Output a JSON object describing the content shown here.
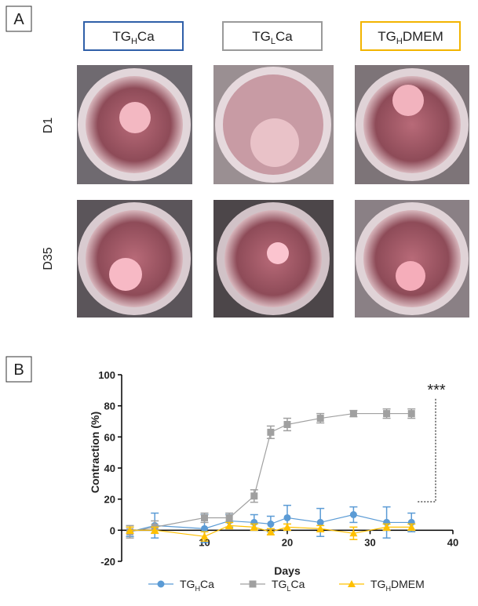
{
  "panel_a": {
    "label": "A",
    "columns": [
      {
        "name": [
          "TG",
          "H",
          "Ca"
        ],
        "color": "#2f5fa8"
      },
      {
        "name": [
          "TG",
          "L",
          "Ca"
        ],
        "color": "#9a9a9a"
      },
      {
        "name": [
          "TG",
          "H",
          "DMEM"
        ],
        "color": "#f2b400"
      }
    ],
    "rows": [
      "D1",
      "D35"
    ]
  },
  "chart_data": {
    "type": "line",
    "panel_label": "B",
    "x_label": "Days",
    "y_label": "Contraction (%)",
    "x": [
      1,
      4,
      10,
      13,
      16,
      18,
      20,
      24,
      28,
      32,
      35
    ],
    "xlim": [
      0,
      40
    ],
    "xticks": [
      10,
      20,
      30,
      40
    ],
    "ylim": [
      -20,
      100
    ],
    "yticks": [
      -20,
      0,
      20,
      40,
      60,
      80,
      100
    ],
    "annotation": "***",
    "series": [
      {
        "name": [
          "TG",
          "H",
          "Ca"
        ],
        "color": "#5b9bd5",
        "marker": "circle",
        "values": [
          -1,
          3,
          1,
          6,
          5,
          4,
          8,
          5,
          10,
          5,
          5
        ],
        "errors": [
          3,
          8,
          9,
          4,
          5,
          5,
          8,
          9,
          5,
          10,
          6
        ]
      },
      {
        "name": [
          "TG",
          "L",
          "Ca"
        ],
        "color": "#a0a0a0",
        "marker": "square",
        "values": [
          -1,
          2,
          8,
          8,
          22,
          63,
          68,
          72,
          75,
          75,
          75
        ],
        "errors": [
          4,
          4,
          3,
          3,
          4,
          4,
          4,
          3,
          2,
          3,
          3
        ]
      },
      {
        "name": [
          "TG",
          "H",
          "DMEM"
        ],
        "color": "#ffc000",
        "marker": "triangle",
        "values": [
          0,
          0,
          -4,
          3,
          2,
          -1,
          2,
          1,
          -2,
          2,
          2
        ],
        "errors": [
          2,
          2,
          3,
          2,
          2,
          2,
          2,
          2,
          4,
          2,
          2
        ]
      }
    ]
  }
}
